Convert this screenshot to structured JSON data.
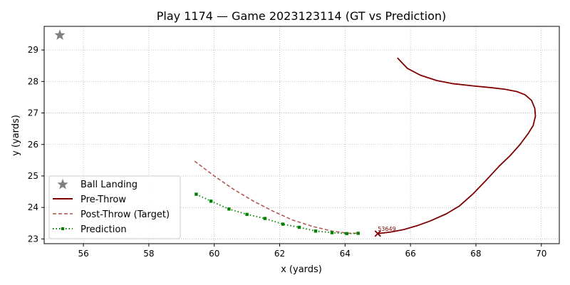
{
  "chart_data": {
    "type": "line",
    "title": "Play 1174 — Game 2023123114 (GT vs Prediction)",
    "xlabel": "x (yards)",
    "ylabel": "y (yards)",
    "xlim": [
      54.8,
      70.55
    ],
    "ylim": [
      22.85,
      29.75
    ],
    "xticks": [
      56,
      58,
      60,
      62,
      64,
      66,
      68,
      70
    ],
    "yticks": [
      23,
      24,
      25,
      26,
      27,
      28,
      29
    ],
    "grid": true,
    "legend_position": "lower-left",
    "legend": [
      "Ball Landing",
      "Pre-Throw",
      "Post-Throw (Target)",
      "Prediction"
    ],
    "ball_landing": {
      "name": "Ball Landing",
      "x": 55.28,
      "y": 29.47,
      "color": "#808080"
    },
    "series": [
      {
        "name": "Pre-Throw",
        "style": "solid",
        "color": "#800000",
        "x": [
          65.6,
          65.9,
          66.3,
          66.8,
          67.3,
          67.9,
          68.5,
          68.9,
          69.25,
          69.5,
          69.7,
          69.8,
          69.82,
          69.75,
          69.6,
          69.35,
          69.05,
          68.7,
          68.3,
          67.9,
          67.5,
          67.1,
          66.6,
          66.2,
          65.8,
          65.4,
          65.0
        ],
        "y": [
          28.75,
          28.42,
          28.2,
          28.03,
          27.93,
          27.86,
          27.8,
          27.75,
          27.68,
          27.58,
          27.4,
          27.15,
          26.9,
          26.6,
          26.35,
          26.0,
          25.65,
          25.3,
          24.85,
          24.42,
          24.05,
          23.8,
          23.57,
          23.42,
          23.3,
          23.22,
          23.17
        ]
      },
      {
        "name": "Post-Throw (Target)",
        "style": "dashed",
        "color": "#b0504a",
        "x": [
          59.4,
          60.0,
          60.6,
          61.2,
          61.8,
          62.4,
          63.0,
          63.6,
          64.1,
          64.4
        ],
        "y": [
          25.47,
          25.0,
          24.57,
          24.2,
          23.88,
          23.6,
          23.4,
          23.25,
          23.18,
          23.18
        ]
      },
      {
        "name": "Prediction",
        "style": "dotted-square",
        "color": "#008000",
        "x": [
          59.45,
          59.9,
          60.45,
          61.0,
          61.55,
          62.1,
          62.6,
          63.1,
          63.6,
          64.05,
          64.4
        ],
        "y": [
          24.42,
          24.2,
          23.95,
          23.78,
          23.65,
          23.47,
          23.37,
          23.25,
          23.2,
          23.17,
          23.18
        ]
      }
    ],
    "target_marker": {
      "x": 65.0,
      "y": 23.17,
      "label": "53649",
      "color": "#800000"
    }
  }
}
